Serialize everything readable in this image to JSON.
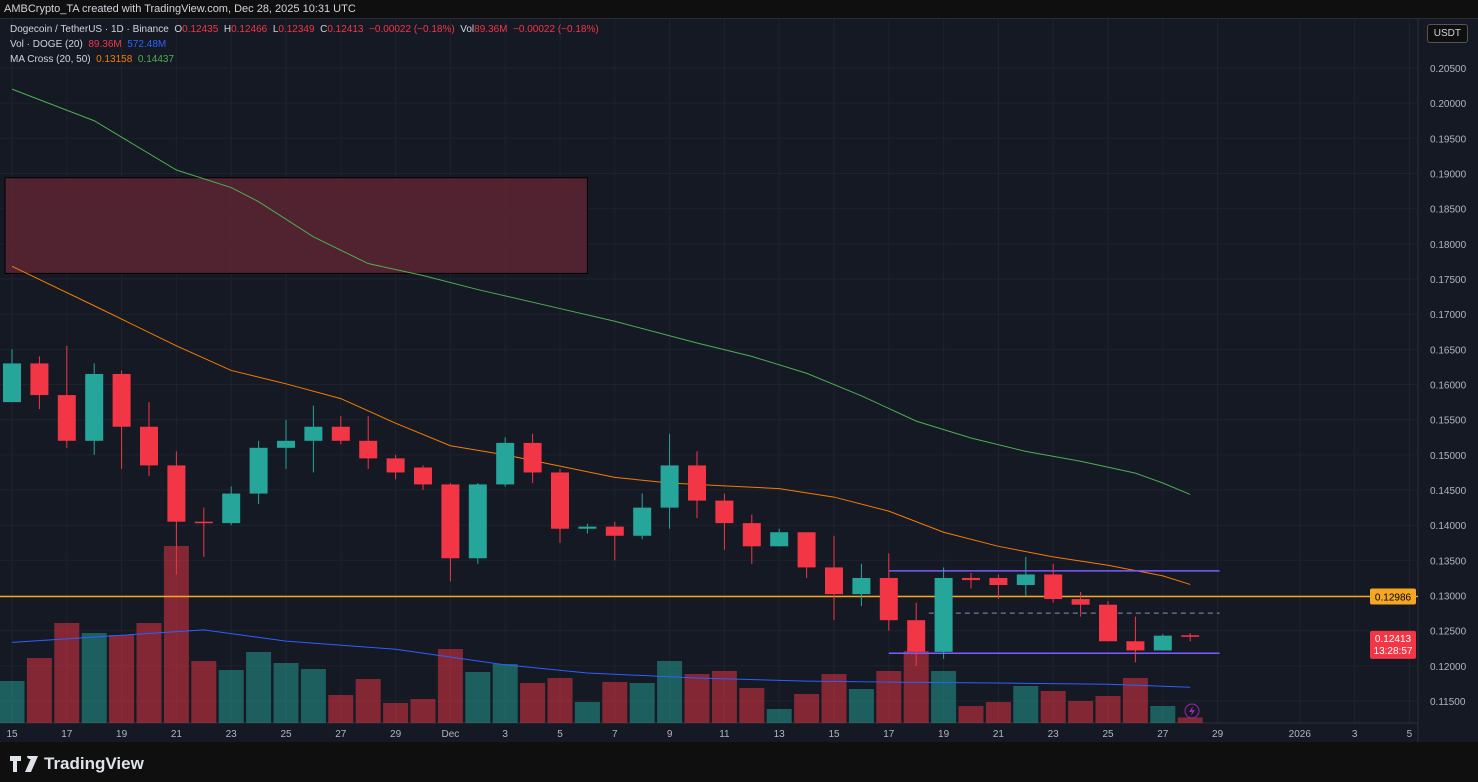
{
  "header": {
    "caption": "AMBCrypto_TA created with TradingView.com, Dec 28, 2025 10:31 UTC"
  },
  "legend": {
    "symbol": "Dogecoin / TetherUS · 1D · Binance",
    "o_label": "O",
    "o": "0.12435",
    "h_label": "H",
    "h": "0.12466",
    "l_label": "L",
    "l": "0.12349",
    "c_label": "C",
    "c": "0.12413",
    "change": "−0.00022 (−0.18%)",
    "vol_label": "Vol",
    "vol": "89.36M",
    "vol_change": "−0.00022 (−0.18%)",
    "vol_ind": "Vol · DOGE (20)",
    "vol_ind_v1": "89.36M",
    "vol_ind_v2": "572.48M",
    "ma_ind": "MA Cross (20, 50)",
    "ma_v1": "0.13158",
    "ma_v2": "0.14437"
  },
  "price_axis": {
    "unit": "USDT",
    "labels": [
      "0.20500",
      "0.20000",
      "0.19500",
      "0.19000",
      "0.18500",
      "0.18000",
      "0.17500",
      "0.17000",
      "0.16500",
      "0.16000",
      "0.15500",
      "0.15000",
      "0.14500",
      "0.14000",
      "0.13500",
      "0.13000",
      "0.12500",
      "0.12000",
      "0.11500"
    ],
    "hline_label": "0.12986",
    "last_price": "0.12413",
    "countdown": "13:28:57"
  },
  "time_axis": {
    "labels": [
      "15",
      "17",
      "19",
      "21",
      "23",
      "25",
      "27",
      "29",
      "Dec",
      "3",
      "5",
      "7",
      "9",
      "11",
      "13",
      "15",
      "17",
      "19",
      "21",
      "23",
      "25",
      "27",
      "29",
      "2026",
      "3",
      "5"
    ],
    "label_dates": [
      "2025-11-15",
      "2025-11-17",
      "2025-11-19",
      "2025-11-21",
      "2025-11-23",
      "2025-11-25",
      "2025-11-27",
      "2025-11-29",
      "2025-12-01",
      "2025-12-03",
      "2025-12-05",
      "2025-12-07",
      "2025-12-09",
      "2025-12-11",
      "2025-12-13",
      "2025-12-15",
      "2025-12-17",
      "2025-12-19",
      "2025-12-21",
      "2025-12-23",
      "2025-12-25",
      "2025-12-27",
      "2025-12-29",
      "2026-01-01",
      "2026-01-03",
      "2026-01-05"
    ]
  },
  "colors": {
    "up": "#26a69a",
    "down": "#f23645",
    "ma20": "#f57c00",
    "ma50": "#4caf50",
    "vol_ma": "#2962ff",
    "hline": "#f5a623",
    "range": "#7b5cff",
    "zone": "#5c2633"
  },
  "footer": {
    "brand": "TradingView"
  },
  "chart_data": {
    "type": "candlestick",
    "ylim": [
      0.113,
      0.208
    ],
    "start_date": "2025-11-15",
    "candles": [
      [
        0.1575,
        0.165,
        0.1575,
        0.163
      ],
      [
        0.163,
        0.164,
        0.1565,
        0.1585
      ],
      [
        0.1585,
        0.1655,
        0.151,
        0.152
      ],
      [
        0.152,
        0.163,
        0.15,
        0.1615
      ],
      [
        0.1615,
        0.162,
        0.148,
        0.154
      ],
      [
        0.154,
        0.1575,
        0.147,
        0.1485
      ],
      [
        0.1485,
        0.1505,
        0.133,
        0.1405
      ],
      [
        0.1405,
        0.1425,
        0.1355,
        0.1403
      ],
      [
        0.1403,
        0.1455,
        0.14,
        0.1445
      ],
      [
        0.1445,
        0.152,
        0.143,
        0.151
      ],
      [
        0.151,
        0.155,
        0.148,
        0.152
      ],
      [
        0.152,
        0.157,
        0.1475,
        0.154
      ],
      [
        0.154,
        0.1555,
        0.1515,
        0.152
      ],
      [
        0.152,
        0.1555,
        0.148,
        0.1495
      ],
      [
        0.1495,
        0.15,
        0.1465,
        0.1475
      ],
      [
        0.1482,
        0.1485,
        0.145,
        0.1458
      ],
      [
        0.1458,
        0.146,
        0.132,
        0.1353
      ],
      [
        0.1353,
        0.146,
        0.1345,
        0.1458
      ],
      [
        0.1458,
        0.1525,
        0.1455,
        0.1517
      ],
      [
        0.1517,
        0.153,
        0.146,
        0.1475
      ],
      [
        0.1475,
        0.148,
        0.1375,
        0.1395
      ],
      [
        0.1395,
        0.1402,
        0.1388,
        0.1398
      ],
      [
        0.1398,
        0.1405,
        0.135,
        0.1385
      ],
      [
        0.1385,
        0.1445,
        0.138,
        0.1425
      ],
      [
        0.1425,
        0.153,
        0.1395,
        0.1485
      ],
      [
        0.1485,
        0.1505,
        0.141,
        0.1435
      ],
      [
        0.1435,
        0.1445,
        0.1365,
        0.1403
      ],
      [
        0.1403,
        0.1415,
        0.1345,
        0.137
      ],
      [
        0.137,
        0.1395,
        0.137,
        0.139
      ],
      [
        0.139,
        0.139,
        0.1325,
        0.134
      ],
      [
        0.134,
        0.1385,
        0.1265,
        0.1302
      ],
      [
        0.1302,
        0.1345,
        0.1285,
        0.1325
      ],
      [
        0.1325,
        0.136,
        0.125,
        0.1265
      ],
      [
        0.1265,
        0.129,
        0.12,
        0.122
      ],
      [
        0.122,
        0.134,
        0.121,
        0.1325
      ],
      [
        0.1325,
        0.1332,
        0.131,
        0.1322
      ],
      [
        0.1325,
        0.133,
        0.1295,
        0.1315
      ],
      [
        0.1315,
        0.1355,
        0.13,
        0.133
      ],
      [
        0.133,
        0.1345,
        0.129,
        0.1295
      ],
      [
        0.1295,
        0.1305,
        0.127,
        0.1287
      ],
      [
        0.1287,
        0.1292,
        0.1235,
        0.1235
      ],
      [
        0.1235,
        0.127,
        0.1205,
        0.1222
      ],
      [
        0.1222,
        0.1245,
        0.1222,
        0.1243
      ],
      [
        0.12435,
        0.12466,
        0.12349,
        0.12413
      ]
    ],
    "volume_millions": [
      672,
      1040,
      1600,
      1440,
      1408,
      1600,
      2832,
      992,
      848,
      1136,
      960,
      864,
      448,
      704,
      320,
      384,
      1184,
      816,
      944,
      640,
      720,
      336,
      656,
      640,
      992,
      784,
      832,
      560,
      224,
      464,
      784,
      544,
      832,
      1152,
      832,
      272,
      336,
      592,
      512,
      352,
      432,
      720,
      272,
      89.36
    ],
    "ma20": [
      [
        "2025-11-15",
        0.1768
      ],
      [
        "2025-11-18",
        0.1712
      ],
      [
        "2025-11-21",
        0.1655
      ],
      [
        "2025-11-23",
        0.162
      ],
      [
        "2025-11-25",
        0.1601
      ],
      [
        "2025-11-27",
        0.158
      ],
      [
        "2025-11-29",
        0.1545
      ],
      [
        "2025-12-01",
        0.1513
      ],
      [
        "2025-12-03",
        0.15
      ],
      [
        "2025-12-05",
        0.1484
      ],
      [
        "2025-12-07",
        0.1468
      ],
      [
        "2025-12-09",
        0.146
      ],
      [
        "2025-12-11",
        0.1456
      ],
      [
        "2025-12-13",
        0.1452
      ],
      [
        "2025-12-15",
        0.144
      ],
      [
        "2025-12-17",
        0.142
      ],
      [
        "2025-12-19",
        0.139
      ],
      [
        "2025-12-21",
        0.137
      ],
      [
        "2025-12-23",
        0.1355
      ],
      [
        "2025-12-25",
        0.1343
      ],
      [
        "2025-12-27",
        0.1328
      ],
      [
        "2025-12-28",
        0.13158
      ]
    ],
    "ma50": [
      [
        "2025-11-15",
        0.202
      ],
      [
        "2025-11-18",
        0.1975
      ],
      [
        "2025-11-21",
        0.1905
      ],
      [
        "2025-11-23",
        0.188
      ],
      [
        "2025-11-24",
        0.186
      ],
      [
        "2025-11-26",
        0.181
      ],
      [
        "2025-11-28",
        0.1772
      ],
      [
        "2025-11-30",
        0.1755
      ],
      [
        "2025-12-02",
        0.1735
      ],
      [
        "2025-12-05",
        0.1708
      ],
      [
        "2025-12-07",
        0.169
      ],
      [
        "2025-12-10",
        0.1659
      ],
      [
        "2025-12-12",
        0.164
      ],
      [
        "2025-12-14",
        0.1616
      ],
      [
        "2025-12-16",
        0.1584
      ],
      [
        "2025-12-18",
        0.1548
      ],
      [
        "2025-12-20",
        0.1524
      ],
      [
        "2025-12-22",
        0.1505
      ],
      [
        "2025-12-24",
        0.1491
      ],
      [
        "2025-12-26",
        0.1474
      ],
      [
        "2025-12-27",
        0.146
      ],
      [
        "2025-12-28",
        0.14437
      ]
    ],
    "vol_ma_millions": [
      [
        "2025-11-15",
        1290
      ],
      [
        "2025-11-22",
        1490
      ],
      [
        "2025-11-25",
        1310
      ],
      [
        "2025-11-29",
        1180
      ],
      [
        "2025-12-03",
        930
      ],
      [
        "2025-12-06",
        800
      ],
      [
        "2025-12-10",
        720
      ],
      [
        "2025-12-14",
        670
      ],
      [
        "2025-12-17",
        655
      ],
      [
        "2025-12-21",
        640
      ],
      [
        "2025-12-25",
        620
      ],
      [
        "2025-12-28",
        572.48
      ]
    ],
    "hline": 0.12986,
    "range_lines": {
      "upper": 0.1335,
      "lower": 0.1218,
      "mid_dashed": 0.1275,
      "from": "2025-12-17",
      "to": "2025-12-29"
    },
    "zone": {
      "top": 0.1894,
      "bottom": 0.1758,
      "from": "2025-11-15",
      "to": "2025-12-06"
    }
  }
}
